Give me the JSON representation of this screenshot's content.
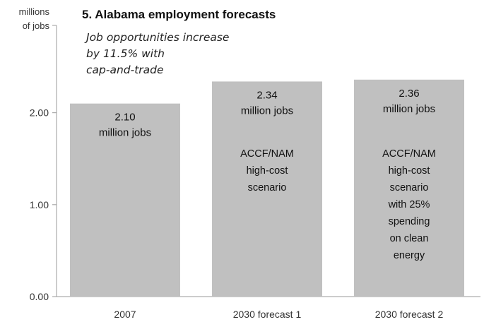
{
  "chart_data": {
    "type": "bar",
    "title": "5. Alabama employment forecasts",
    "subtitle_lines": [
      "Job opportunities increase",
      "by 11.5% with",
      "cap-and-trade"
    ],
    "ylabel_lines": [
      "millions",
      "of jobs"
    ],
    "xlabel": "",
    "categories": [
      "2007",
      "2030 forecast 1",
      "2030 forecast 2"
    ],
    "values": [
      2.1,
      2.34,
      2.36
    ],
    "value_labels": [
      "2.10",
      "2.34",
      "2.36"
    ],
    "value_unit": "million jobs",
    "bar_notes": [
      [],
      [
        "ACCF/NAM",
        "high-cost",
        "scenario"
      ],
      [
        "ACCF/NAM",
        "high-cost",
        "scenario",
        "with 25%",
        "spending",
        "on clean",
        "energy"
      ]
    ],
    "yticks": [
      0.0,
      1.0,
      2.0
    ],
    "ytick_labels": [
      "0.00",
      "1.00",
      "2.00"
    ],
    "ylim": [
      0,
      2.95
    ],
    "grid": false,
    "legend": "none",
    "colors": {
      "bar": "#c0c0c0",
      "axis": "#999999",
      "text": "#111111"
    }
  }
}
